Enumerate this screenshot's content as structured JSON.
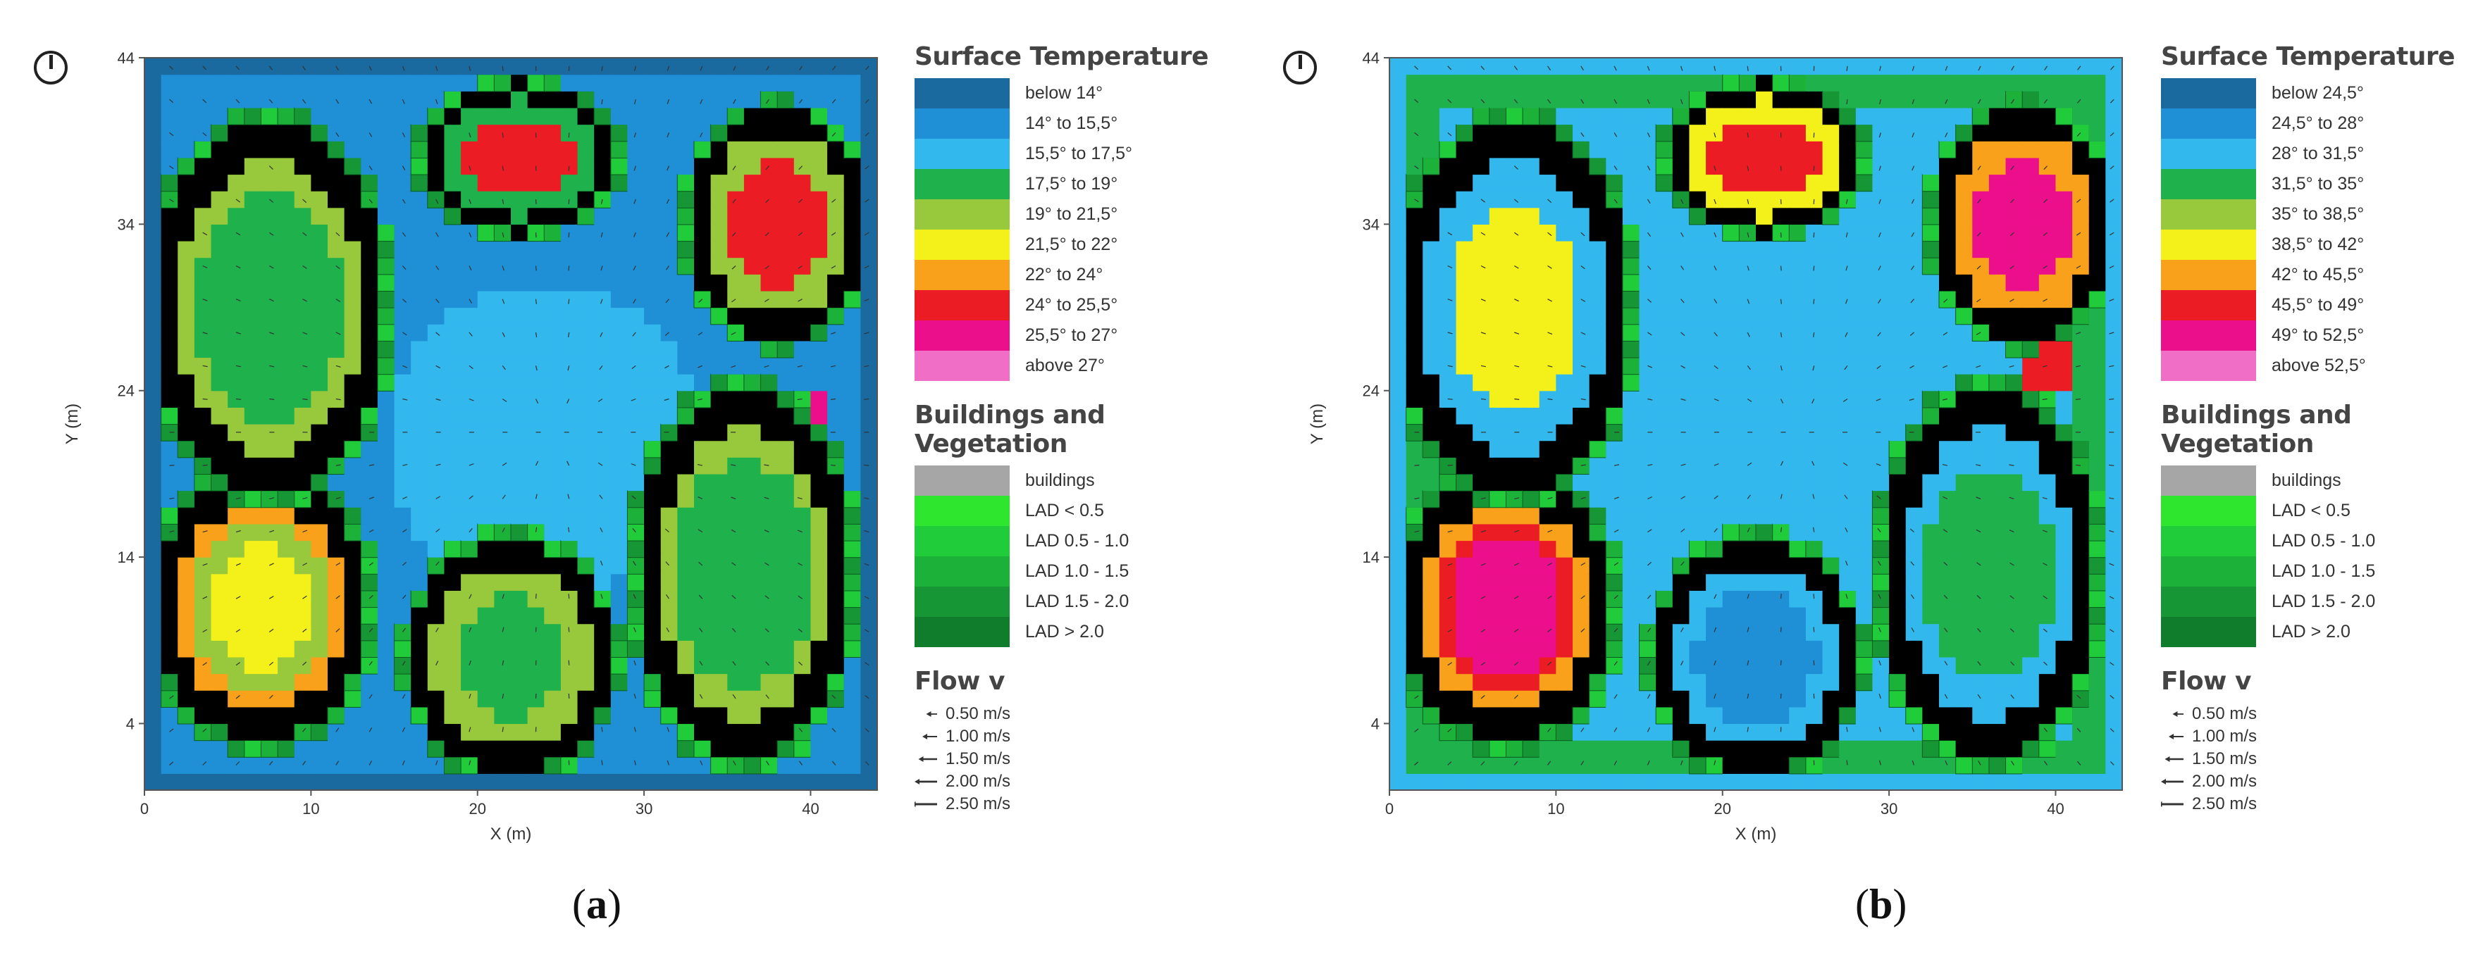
{
  "chart_data": [
    {
      "type": "heatmap",
      "panel_label": "a",
      "xlabel": "X (m)",
      "ylabel": "Y (m)",
      "xlim": [
        0,
        44
      ],
      "ylim": [
        0,
        44
      ],
      "x_ticks": [
        "0",
        "10",
        "20",
        "30",
        "40"
      ],
      "y_ticks": [
        "4",
        "14",
        "24",
        "34",
        "44"
      ],
      "legend_title": "Surface Temperature",
      "temperature_classes": [
        {
          "label": "below  14°",
          "color": "#1a6aa0"
        },
        {
          "label": "14° to 15,5°",
          "color": "#1f8fd6"
        },
        {
          "label": "15,5° to 17,5°",
          "color": "#33b8ee"
        },
        {
          "label": "17,5° to 19°",
          "color": "#1fb14c"
        },
        {
          "label": "19° to 21,5°",
          "color": "#98c93c"
        },
        {
          "label": "21,5° to 22°",
          "color": "#f4f11a"
        },
        {
          "label": "22° to 24°",
          "color": "#f9a11b"
        },
        {
          "label": "24° to 25,5°",
          "color": "#ec1c24"
        },
        {
          "label": "25,5° to 27°",
          "color": "#ec0f8c"
        },
        {
          "label": "above 27°",
          "color": "#f06ec6"
        }
      ],
      "vegetation_title": "Buildings and Vegetation",
      "vegetation_classes": [
        {
          "label": "buildings",
          "color": "#a6a6a6"
        },
        {
          "label": "LAD < 0.5",
          "color": "#2ee62e"
        },
        {
          "label": "LAD 0.5 - 1.0",
          "color": "#20cc3a"
        },
        {
          "label": "LAD 1.0 - 1.5",
          "color": "#1cb23a"
        },
        {
          "label": "LAD 1.5 - 2.0",
          "color": "#169634"
        },
        {
          "label": "LAD > 2.0",
          "color": "#107d2c"
        }
      ],
      "flow_title": "Flow v",
      "flow_classes": [
        {
          "label": "0.50 m/s",
          "speed": 0.5
        },
        {
          "label": "1.00 m/s",
          "speed": 1.0
        },
        {
          "label": "1.50 m/s",
          "speed": 1.5
        },
        {
          "label": "2.00 m/s",
          "speed": 2.0
        },
        {
          "label": "2.50 m/s",
          "speed": 2.5
        }
      ]
    },
    {
      "type": "heatmap",
      "panel_label": "b",
      "xlabel": "X (m)",
      "ylabel": "Y (m)",
      "xlim": [
        0,
        44
      ],
      "ylim": [
        0,
        44
      ],
      "x_ticks": [
        "0",
        "10",
        "20",
        "30",
        "40"
      ],
      "y_ticks": [
        "4",
        "14",
        "24",
        "34",
        "44"
      ],
      "legend_title": "Surface Temperature",
      "temperature_classes": [
        {
          "label": "below  24,5°",
          "color": "#1a6aa0"
        },
        {
          "label": "24,5° to 28°",
          "color": "#1f8fd6"
        },
        {
          "label": "28° to 31,5°",
          "color": "#33b8ee"
        },
        {
          "label": "31,5° to 35°",
          "color": "#1fb14c"
        },
        {
          "label": "35° to 38,5°",
          "color": "#98c93c"
        },
        {
          "label": "38,5° to 42°",
          "color": "#f4f11a"
        },
        {
          "label": "42° to 45,5°",
          "color": "#f9a11b"
        },
        {
          "label": "45,5° to 49°",
          "color": "#ec1c24"
        },
        {
          "label": "49° to 52,5°",
          "color": "#ec0f8c"
        },
        {
          "label": "above 52,5°",
          "color": "#f06ec6"
        }
      ],
      "vegetation_title": "Buildings and Vegetation",
      "vegetation_classes": [
        {
          "label": "buildings",
          "color": "#a6a6a6"
        },
        {
          "label": "LAD < 0.5",
          "color": "#2ee62e"
        },
        {
          "label": "LAD 0.5 - 1.0",
          "color": "#20cc3a"
        },
        {
          "label": "LAD 1.0 - 1.5",
          "color": "#1cb23a"
        },
        {
          "label": "LAD 1.5 - 2.0",
          "color": "#169634"
        },
        {
          "label": "LAD > 2.0",
          "color": "#107d2c"
        }
      ],
      "flow_title": "Flow v",
      "flow_classes": [
        {
          "label": "0.50 m/s",
          "speed": 0.5
        },
        {
          "label": "1.00 m/s",
          "speed": 1.0
        },
        {
          "label": "1.50 m/s",
          "speed": 1.5
        },
        {
          "label": "2.00 m/s",
          "speed": 2.0
        },
        {
          "label": "2.50 m/s",
          "speed": 2.5
        }
      ]
    }
  ],
  "captions": {
    "a": "a",
    "b": "b"
  }
}
